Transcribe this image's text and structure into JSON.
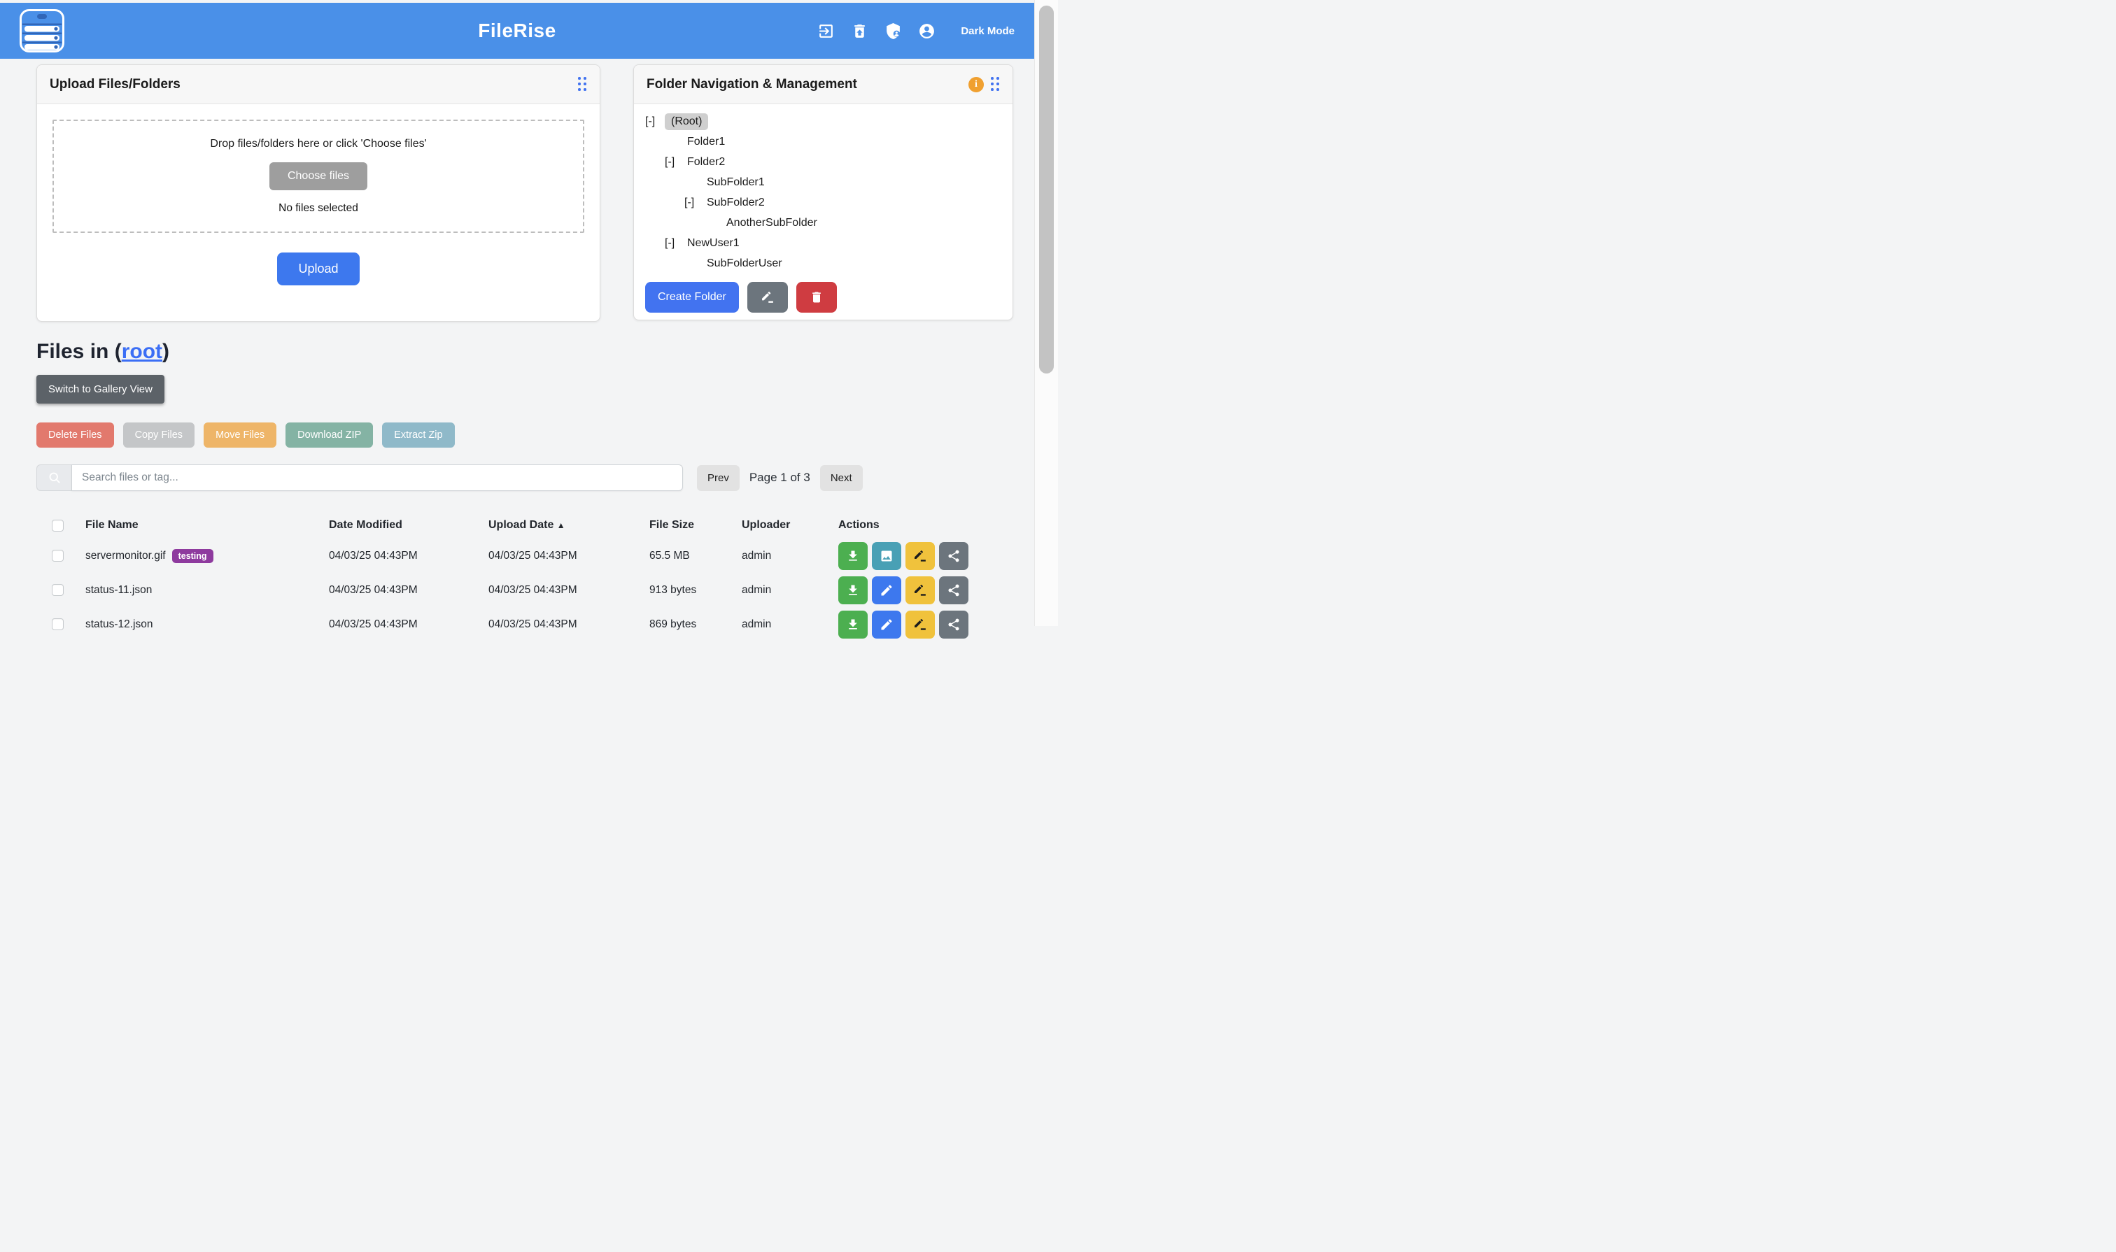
{
  "header": {
    "title": "FileRise",
    "dark_mode_label": "Dark Mode"
  },
  "colors": {
    "header_blue": "#4a90e8",
    "primary_blue": "#3d78ee",
    "link_blue": "#3b6ef5",
    "tag_purple": "#8e3a9e",
    "info_orange": "#f0a030",
    "delete_red": "#cf3c41"
  },
  "upload_card": {
    "title": "Upload Files/Folders",
    "dropzone_text": "Drop files/folders here or click 'Choose files'",
    "choose_files_label": "Choose files",
    "no_files_text": "No files selected",
    "upload_label": "Upload"
  },
  "folder_card": {
    "title": "Folder Navigation & Management",
    "create_folder_label": "Create Folder",
    "tree": [
      {
        "label": "(Root)",
        "level": 0,
        "toggle": "[-]",
        "selected": true
      },
      {
        "label": "Folder1",
        "level": 1,
        "toggle": "",
        "selected": false
      },
      {
        "label": "Folder2",
        "level": 1,
        "toggle": "[-]",
        "selected": false
      },
      {
        "label": "SubFolder1",
        "level": 2,
        "toggle": "",
        "selected": false
      },
      {
        "label": "SubFolder2",
        "level": 2,
        "toggle": "[-]",
        "selected": false
      },
      {
        "label": "AnotherSubFolder",
        "level": 3,
        "toggle": "",
        "selected": false
      },
      {
        "label": "NewUser1",
        "level": 1,
        "toggle": "[-]",
        "selected": false
      },
      {
        "label": "SubFolderUser",
        "level": 2,
        "toggle": "",
        "selected": false
      }
    ]
  },
  "files_section": {
    "heading_prefix": "Files in (",
    "heading_link": "root",
    "heading_suffix": ")",
    "gallery_button_label": "Switch to Gallery View",
    "bulk_actions": [
      {
        "label": "Delete Files",
        "color": "#e2796d"
      },
      {
        "label": "Copy Files",
        "color": "#c4c6c8"
      },
      {
        "label": "Move Files",
        "color": "#eeb568"
      },
      {
        "label": "Download ZIP",
        "color": "#84b3a4"
      },
      {
        "label": "Extract Zip",
        "color": "#8fb9c9"
      }
    ],
    "search_placeholder": "Search files or tag...",
    "pagination": {
      "prev_label": "Prev",
      "page_label": "Page 1 of 3",
      "next_label": "Next"
    }
  },
  "table": {
    "headers": {
      "file_name": "File Name",
      "date_modified": "Date Modified",
      "upload_date": "Upload Date",
      "file_size": "File Size",
      "uploader": "Uploader",
      "actions": "Actions"
    },
    "sort_indicator": "▲",
    "action_colors": {
      "download": "#4caf50",
      "preview": "#49a0b5",
      "edit": "#3d78ee",
      "rename": "#f0c23c",
      "share": "#6c757d"
    },
    "rows": [
      {
        "name": "servermonitor.gif",
        "tag": "testing",
        "modified": "04/03/25 04:43PM",
        "uploaded": "04/03/25 04:43PM",
        "size": "65.5 MB",
        "uploader": "admin",
        "actions": [
          "download",
          "preview",
          "rename",
          "share"
        ]
      },
      {
        "name": "status-11.json",
        "tag": "",
        "modified": "04/03/25 04:43PM",
        "uploaded": "04/03/25 04:43PM",
        "size": "913 bytes",
        "uploader": "admin",
        "actions": [
          "download",
          "edit",
          "rename",
          "share"
        ]
      },
      {
        "name": "status-12.json",
        "tag": "",
        "modified": "04/03/25 04:43PM",
        "uploaded": "04/03/25 04:43PM",
        "size": "869 bytes",
        "uploader": "admin",
        "actions": [
          "download",
          "edit",
          "rename",
          "share"
        ]
      }
    ]
  }
}
